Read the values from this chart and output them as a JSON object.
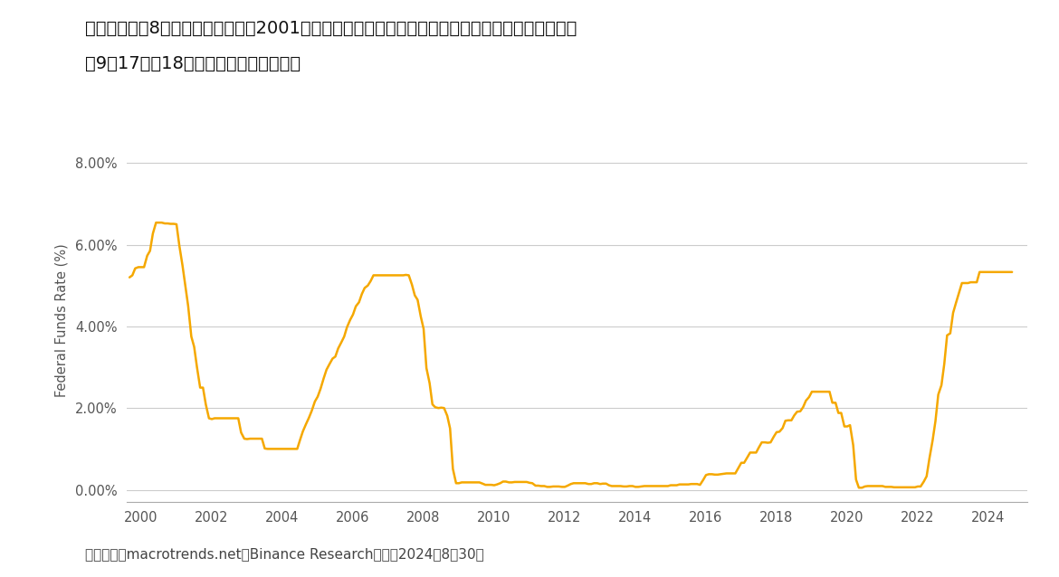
{
  "title_line1": "图二：在连续8次会议将利率维持在2001年以来的最高水平后，所有人都认为联邦公开市场委员会将",
  "title_line2": "在9月17日至18日的下一次会议上降息。",
  "ylabel": "Federal Funds Rate (%)",
  "source": "资料来源：macrotrends.net，Binance Research，截至2024年8月30日",
  "line_color": "#F5A800",
  "background_color": "#FFFFFF",
  "yticks": [
    0.0,
    2.0,
    4.0,
    6.0,
    8.0
  ],
  "ytick_labels": [
    "0.00%",
    "2.00%",
    "4.00%",
    "6.00%",
    "8.00%"
  ],
  "xmin": 1999.6,
  "xmax": 2025.1,
  "ymin": -0.3,
  "ymax": 8.6,
  "xtick_years": [
    2000,
    2002,
    2004,
    2006,
    2008,
    2010,
    2012,
    2014,
    2016,
    2018,
    2020,
    2022,
    2024
  ],
  "ffr_data": [
    [
      1999.67,
      5.2
    ],
    [
      1999.75,
      5.25
    ],
    [
      1999.83,
      5.42
    ],
    [
      1999.92,
      5.45
    ],
    [
      2000.0,
      5.45
    ],
    [
      2000.08,
      5.45
    ],
    [
      2000.17,
      5.73
    ],
    [
      2000.25,
      5.85
    ],
    [
      2000.33,
      6.27
    ],
    [
      2000.42,
      6.54
    ],
    [
      2000.5,
      6.54
    ],
    [
      2000.58,
      6.54
    ],
    [
      2000.67,
      6.52
    ],
    [
      2000.75,
      6.52
    ],
    [
      2000.83,
      6.51
    ],
    [
      2000.92,
      6.51
    ],
    [
      2001.0,
      6.5
    ],
    [
      2001.08,
      5.98
    ],
    [
      2001.17,
      5.49
    ],
    [
      2001.25,
      5.0
    ],
    [
      2001.33,
      4.5
    ],
    [
      2001.42,
      3.75
    ],
    [
      2001.5,
      3.5
    ],
    [
      2001.58,
      3.0
    ],
    [
      2001.67,
      2.5
    ],
    [
      2001.75,
      2.5
    ],
    [
      2001.83,
      2.09
    ],
    [
      2001.92,
      1.75
    ],
    [
      2002.0,
      1.73
    ],
    [
      2002.08,
      1.75
    ],
    [
      2002.17,
      1.75
    ],
    [
      2002.25,
      1.75
    ],
    [
      2002.33,
      1.75
    ],
    [
      2002.42,
      1.75
    ],
    [
      2002.5,
      1.75
    ],
    [
      2002.58,
      1.75
    ],
    [
      2002.67,
      1.75
    ],
    [
      2002.75,
      1.75
    ],
    [
      2002.83,
      1.4
    ],
    [
      2002.92,
      1.25
    ],
    [
      2003.0,
      1.24
    ],
    [
      2003.08,
      1.25
    ],
    [
      2003.17,
      1.25
    ],
    [
      2003.25,
      1.25
    ],
    [
      2003.33,
      1.25
    ],
    [
      2003.42,
      1.25
    ],
    [
      2003.5,
      1.01
    ],
    [
      2003.58,
      1.0
    ],
    [
      2003.67,
      1.0
    ],
    [
      2003.75,
      1.0
    ],
    [
      2003.83,
      1.0
    ],
    [
      2003.92,
      1.0
    ],
    [
      2004.0,
      1.0
    ],
    [
      2004.08,
      1.0
    ],
    [
      2004.17,
      1.0
    ],
    [
      2004.25,
      1.0
    ],
    [
      2004.33,
      1.0
    ],
    [
      2004.42,
      1.0
    ],
    [
      2004.5,
      1.22
    ],
    [
      2004.58,
      1.43
    ],
    [
      2004.67,
      1.61
    ],
    [
      2004.75,
      1.76
    ],
    [
      2004.83,
      1.93
    ],
    [
      2004.92,
      2.16
    ],
    [
      2005.0,
      2.28
    ],
    [
      2005.08,
      2.47
    ],
    [
      2005.17,
      2.73
    ],
    [
      2005.25,
      2.94
    ],
    [
      2005.33,
      3.07
    ],
    [
      2005.42,
      3.21
    ],
    [
      2005.5,
      3.26
    ],
    [
      2005.58,
      3.46
    ],
    [
      2005.67,
      3.61
    ],
    [
      2005.75,
      3.75
    ],
    [
      2005.83,
      3.98
    ],
    [
      2005.92,
      4.16
    ],
    [
      2006.0,
      4.29
    ],
    [
      2006.08,
      4.49
    ],
    [
      2006.17,
      4.59
    ],
    [
      2006.25,
      4.79
    ],
    [
      2006.33,
      4.94
    ],
    [
      2006.42,
      5.0
    ],
    [
      2006.5,
      5.11
    ],
    [
      2006.58,
      5.25
    ],
    [
      2006.67,
      5.25
    ],
    [
      2006.75,
      5.25
    ],
    [
      2006.83,
      5.25
    ],
    [
      2006.92,
      5.25
    ],
    [
      2007.0,
      5.25
    ],
    [
      2007.08,
      5.25
    ],
    [
      2007.17,
      5.25
    ],
    [
      2007.25,
      5.25
    ],
    [
      2007.33,
      5.25
    ],
    [
      2007.42,
      5.25
    ],
    [
      2007.5,
      5.26
    ],
    [
      2007.58,
      5.25
    ],
    [
      2007.67,
      5.02
    ],
    [
      2007.75,
      4.76
    ],
    [
      2007.83,
      4.65
    ],
    [
      2007.92,
      4.24
    ],
    [
      2008.0,
      3.94
    ],
    [
      2008.08,
      2.98
    ],
    [
      2008.17,
      2.61
    ],
    [
      2008.25,
      2.09
    ],
    [
      2008.33,
      2.02
    ],
    [
      2008.42,
      2.0
    ],
    [
      2008.5,
      2.01
    ],
    [
      2008.58,
      2.0
    ],
    [
      2008.67,
      1.81
    ],
    [
      2008.75,
      1.5
    ],
    [
      2008.83,
      0.51
    ],
    [
      2008.92,
      0.16
    ],
    [
      2009.0,
      0.16
    ],
    [
      2009.08,
      0.18
    ],
    [
      2009.17,
      0.18
    ],
    [
      2009.25,
      0.18
    ],
    [
      2009.33,
      0.18
    ],
    [
      2009.42,
      0.18
    ],
    [
      2009.5,
      0.18
    ],
    [
      2009.58,
      0.18
    ],
    [
      2009.67,
      0.15
    ],
    [
      2009.75,
      0.12
    ],
    [
      2009.83,
      0.12
    ],
    [
      2009.92,
      0.12
    ],
    [
      2010.0,
      0.11
    ],
    [
      2010.08,
      0.13
    ],
    [
      2010.17,
      0.16
    ],
    [
      2010.25,
      0.2
    ],
    [
      2010.33,
      0.2
    ],
    [
      2010.42,
      0.18
    ],
    [
      2010.5,
      0.18
    ],
    [
      2010.58,
      0.19
    ],
    [
      2010.67,
      0.19
    ],
    [
      2010.75,
      0.19
    ],
    [
      2010.83,
      0.19
    ],
    [
      2010.92,
      0.19
    ],
    [
      2011.0,
      0.17
    ],
    [
      2011.08,
      0.16
    ],
    [
      2011.17,
      0.1
    ],
    [
      2011.25,
      0.1
    ],
    [
      2011.33,
      0.09
    ],
    [
      2011.42,
      0.09
    ],
    [
      2011.5,
      0.07
    ],
    [
      2011.58,
      0.07
    ],
    [
      2011.67,
      0.08
    ],
    [
      2011.75,
      0.08
    ],
    [
      2011.83,
      0.08
    ],
    [
      2011.92,
      0.07
    ],
    [
      2012.0,
      0.07
    ],
    [
      2012.08,
      0.1
    ],
    [
      2012.17,
      0.14
    ],
    [
      2012.25,
      0.16
    ],
    [
      2012.33,
      0.16
    ],
    [
      2012.42,
      0.16
    ],
    [
      2012.5,
      0.16
    ],
    [
      2012.58,
      0.16
    ],
    [
      2012.67,
      0.14
    ],
    [
      2012.75,
      0.14
    ],
    [
      2012.83,
      0.16
    ],
    [
      2012.92,
      0.16
    ],
    [
      2013.0,
      0.14
    ],
    [
      2013.08,
      0.15
    ],
    [
      2013.17,
      0.15
    ],
    [
      2013.25,
      0.11
    ],
    [
      2013.33,
      0.09
    ],
    [
      2013.42,
      0.09
    ],
    [
      2013.5,
      0.09
    ],
    [
      2013.58,
      0.09
    ],
    [
      2013.67,
      0.08
    ],
    [
      2013.75,
      0.08
    ],
    [
      2013.83,
      0.09
    ],
    [
      2013.92,
      0.09
    ],
    [
      2014.0,
      0.07
    ],
    [
      2014.08,
      0.07
    ],
    [
      2014.17,
      0.08
    ],
    [
      2014.25,
      0.09
    ],
    [
      2014.33,
      0.09
    ],
    [
      2014.42,
      0.09
    ],
    [
      2014.5,
      0.09
    ],
    [
      2014.58,
      0.09
    ],
    [
      2014.67,
      0.09
    ],
    [
      2014.75,
      0.09
    ],
    [
      2014.83,
      0.09
    ],
    [
      2014.92,
      0.09
    ],
    [
      2015.0,
      0.11
    ],
    [
      2015.08,
      0.11
    ],
    [
      2015.17,
      0.11
    ],
    [
      2015.25,
      0.13
    ],
    [
      2015.33,
      0.13
    ],
    [
      2015.42,
      0.13
    ],
    [
      2015.5,
      0.13
    ],
    [
      2015.58,
      0.14
    ],
    [
      2015.67,
      0.14
    ],
    [
      2015.75,
      0.14
    ],
    [
      2015.83,
      0.12
    ],
    [
      2015.92,
      0.24
    ],
    [
      2016.0,
      0.36
    ],
    [
      2016.08,
      0.38
    ],
    [
      2016.17,
      0.38
    ],
    [
      2016.25,
      0.37
    ],
    [
      2016.33,
      0.37
    ],
    [
      2016.42,
      0.38
    ],
    [
      2016.5,
      0.39
    ],
    [
      2016.58,
      0.4
    ],
    [
      2016.67,
      0.4
    ],
    [
      2016.75,
      0.4
    ],
    [
      2016.83,
      0.4
    ],
    [
      2016.92,
      0.54
    ],
    [
      2017.0,
      0.66
    ],
    [
      2017.08,
      0.66
    ],
    [
      2017.17,
      0.79
    ],
    [
      2017.25,
      0.91
    ],
    [
      2017.33,
      0.91
    ],
    [
      2017.42,
      0.91
    ],
    [
      2017.5,
      1.04
    ],
    [
      2017.58,
      1.16
    ],
    [
      2017.67,
      1.16
    ],
    [
      2017.75,
      1.15
    ],
    [
      2017.83,
      1.16
    ],
    [
      2017.92,
      1.3
    ],
    [
      2018.0,
      1.41
    ],
    [
      2018.08,
      1.42
    ],
    [
      2018.17,
      1.51
    ],
    [
      2018.25,
      1.69
    ],
    [
      2018.33,
      1.7
    ],
    [
      2018.42,
      1.7
    ],
    [
      2018.5,
      1.82
    ],
    [
      2018.58,
      1.91
    ],
    [
      2018.67,
      1.92
    ],
    [
      2018.75,
      2.02
    ],
    [
      2018.83,
      2.18
    ],
    [
      2018.92,
      2.27
    ],
    [
      2019.0,
      2.4
    ],
    [
      2019.08,
      2.4
    ],
    [
      2019.17,
      2.4
    ],
    [
      2019.25,
      2.4
    ],
    [
      2019.33,
      2.4
    ],
    [
      2019.42,
      2.4
    ],
    [
      2019.5,
      2.4
    ],
    [
      2019.58,
      2.13
    ],
    [
      2019.67,
      2.13
    ],
    [
      2019.75,
      1.88
    ],
    [
      2019.83,
      1.88
    ],
    [
      2019.92,
      1.55
    ],
    [
      2020.0,
      1.55
    ],
    [
      2020.08,
      1.58
    ],
    [
      2020.17,
      1.09
    ],
    [
      2020.25,
      0.25
    ],
    [
      2020.33,
      0.05
    ],
    [
      2020.42,
      0.05
    ],
    [
      2020.5,
      0.08
    ],
    [
      2020.58,
      0.09
    ],
    [
      2020.67,
      0.09
    ],
    [
      2020.75,
      0.09
    ],
    [
      2020.83,
      0.09
    ],
    [
      2020.92,
      0.09
    ],
    [
      2021.0,
      0.09
    ],
    [
      2021.08,
      0.07
    ],
    [
      2021.17,
      0.07
    ],
    [
      2021.25,
      0.07
    ],
    [
      2021.33,
      0.06
    ],
    [
      2021.42,
      0.06
    ],
    [
      2021.5,
      0.06
    ],
    [
      2021.58,
      0.06
    ],
    [
      2021.67,
      0.06
    ],
    [
      2021.75,
      0.06
    ],
    [
      2021.83,
      0.06
    ],
    [
      2021.92,
      0.06
    ],
    [
      2022.0,
      0.08
    ],
    [
      2022.08,
      0.08
    ],
    [
      2022.17,
      0.2
    ],
    [
      2022.25,
      0.33
    ],
    [
      2022.33,
      0.77
    ],
    [
      2022.42,
      1.21
    ],
    [
      2022.5,
      1.68
    ],
    [
      2022.58,
      2.33
    ],
    [
      2022.67,
      2.56
    ],
    [
      2022.75,
      3.08
    ],
    [
      2022.83,
      3.78
    ],
    [
      2022.92,
      3.83
    ],
    [
      2023.0,
      4.33
    ],
    [
      2023.08,
      4.57
    ],
    [
      2023.17,
      4.83
    ],
    [
      2023.25,
      5.06
    ],
    [
      2023.33,
      5.06
    ],
    [
      2023.42,
      5.06
    ],
    [
      2023.5,
      5.08
    ],
    [
      2023.58,
      5.08
    ],
    [
      2023.67,
      5.08
    ],
    [
      2023.75,
      5.33
    ],
    [
      2023.83,
      5.33
    ],
    [
      2023.92,
      5.33
    ],
    [
      2024.0,
      5.33
    ],
    [
      2024.08,
      5.33
    ],
    [
      2024.17,
      5.33
    ],
    [
      2024.25,
      5.33
    ],
    [
      2024.33,
      5.33
    ],
    [
      2024.42,
      5.33
    ],
    [
      2024.5,
      5.33
    ],
    [
      2024.58,
      5.33
    ],
    [
      2024.67,
      5.33
    ]
  ]
}
